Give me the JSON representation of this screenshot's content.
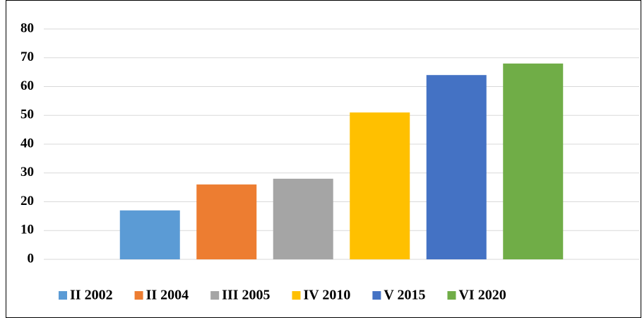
{
  "chart_data": {
    "type": "bar",
    "categories": [
      null
    ],
    "series": [
      {
        "name": "II 2002",
        "color": "#5b9bd5",
        "values": [
          17
        ]
      },
      {
        "name": "II 2004",
        "color": "#ed7d31",
        "values": [
          26
        ]
      },
      {
        "name": "III 2005",
        "color": "#a5a5a5",
        "values": [
          28
        ]
      },
      {
        "name": "IV 2010",
        "color": "#ffc000",
        "values": [
          51
        ]
      },
      {
        "name": "V 2015",
        "color": "#4472c4",
        "values": [
          64
        ]
      },
      {
        "name": "VI 2020",
        "color": "#70ad47",
        "values": [
          68
        ]
      }
    ],
    "ylim": [
      0,
      80
    ],
    "yticks": [
      0,
      10,
      20,
      30,
      40,
      50,
      60,
      70,
      80
    ],
    "grid": true,
    "legend": "bottom"
  }
}
